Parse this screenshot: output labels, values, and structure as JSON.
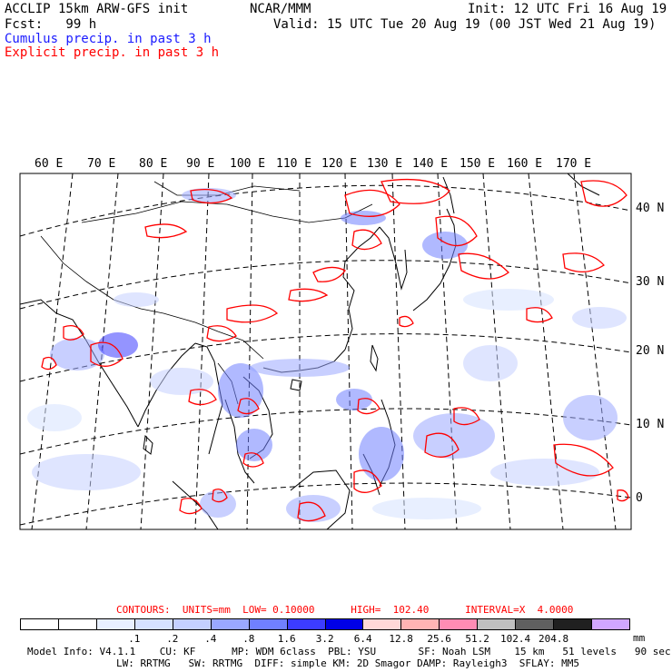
{
  "header": {
    "left_line1": "ACCLIP 15km ARW-GFS init",
    "left_line2": "Fcst:   99 h",
    "center": "NCAR/MMM",
    "init": "Init: 12 UTC Fri 16 Aug 19",
    "valid": "Valid: 15 UTC Tue 20 Aug 19 (00 JST Wed 21 Aug 19)",
    "cumulus": "Cumulus precip. in past 3 h",
    "explicit": "Explicit precip. in past 3 h"
  },
  "colors": {
    "cumulus_text": "#1a1aff",
    "explicit_text": "#ff0000",
    "explicit_contour": "#ff0000",
    "coast": "#000000"
  },
  "map": {
    "lon_labels": [
      "60 E",
      "70 E",
      "80 E",
      "90 E",
      "100 E",
      "110 E",
      "120 E",
      "130 E",
      "140 E",
      "150 E",
      "160 E",
      "170 E"
    ],
    "lat_labels": [
      "40 N",
      "30 N",
      "20 N",
      "10 N",
      "0"
    ]
  },
  "contour_info": {
    "text": "CONTOURS:  UNITS=mm  LOW= 0.10000      HIGH=  102.40      INTERVAL=X  4.0000"
  },
  "legend": {
    "colors": [
      "#ffffff",
      "#ffffff",
      "#e8f0ff",
      "#d6e2ff",
      "#c4d0ff",
      "#9aa8ff",
      "#7080ff",
      "#3c3cff",
      "#0000e6",
      "#ffd8d8",
      "#ffb4b4",
      "#ff8cb4",
      "#c0c0c0",
      "#606060",
      "#202020",
      "#d2a6ff"
    ],
    "tick_labels": [
      ".1",
      ".2",
      ".4",
      ".8",
      "1.6",
      "3.2",
      "6.4",
      "12.8",
      "25.6",
      "51.2",
      "102.4",
      "204.8"
    ],
    "units": "mm"
  },
  "footer": {
    "line1": "Model Info: V4.1.1    CU: KF      MP: WDM 6class  PBL: YSU       SF: Noah LSM    15 km   51 levels   90 sec",
    "line2": "LW: RRTMG   SW: RRTMG  DIFF: simple KM: 2D Smagor DAMP: Rayleigh3  SFLAY: MM5"
  }
}
